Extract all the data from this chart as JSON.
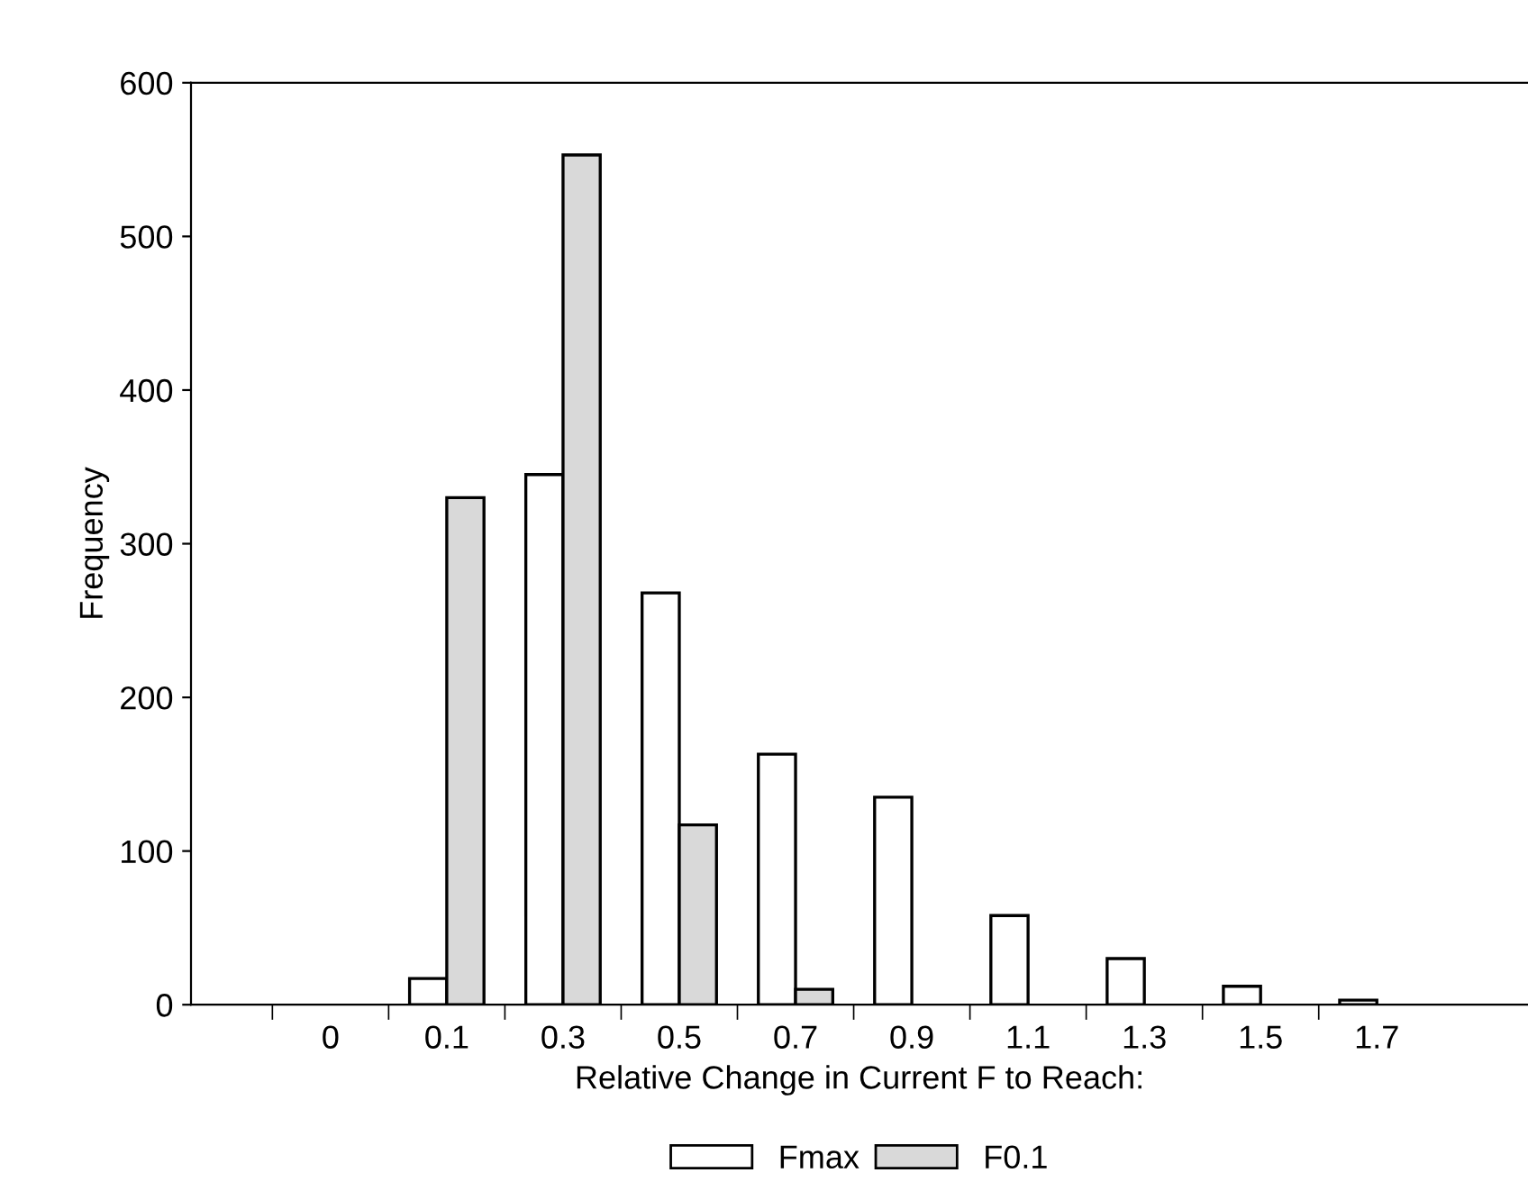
{
  "chart_data": {
    "type": "bar",
    "xlabel": "Relative Change in Current F to Reach:",
    "ylabel": "Frequency",
    "categories": [
      "0",
      "0.1",
      "0.3",
      "0.5",
      "0.7",
      "0.9",
      "1.1",
      "1.3",
      "1.5",
      "1.7"
    ],
    "series": [
      {
        "name": "Fmax",
        "color": "#ffffff",
        "values": [
          null,
          17,
          345,
          268,
          163,
          135,
          58,
          30,
          12,
          3
        ]
      },
      {
        "name": "F0.1",
        "color": "#d9d9d9",
        "values": [
          null,
          330,
          553,
          117,
          10,
          null,
          null,
          null,
          null,
          null
        ]
      }
    ],
    "ylim": [
      0,
      600
    ],
    "yticks": [
      0,
      100,
      200,
      300,
      400,
      500,
      600
    ],
    "grid": false,
    "legend": "bottom"
  }
}
